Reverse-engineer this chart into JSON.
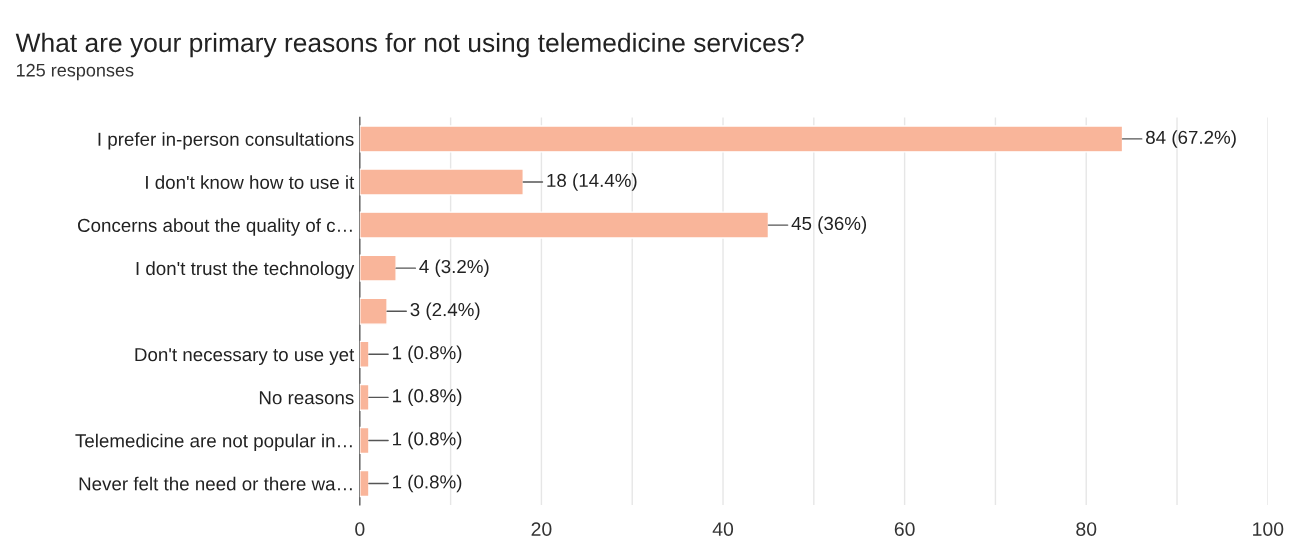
{
  "chart_data": {
    "type": "bar",
    "orientation": "horizontal",
    "title": "What are your primary reasons for not using telemedicine services?",
    "subtitle": "125 responses",
    "categories": [
      "I prefer in-person consultations",
      "I don't know how to use it",
      "Concerns about the quality of c…",
      "I don't trust the technology",
      null,
      "Don't necessary to use yet",
      "No reasons",
      "Telemedicine are not popular in…",
      "Never felt the need or there wa…"
    ],
    "values": [
      84,
      18,
      45,
      4,
      3,
      1,
      1,
      1,
      1
    ],
    "value_labels": [
      "84 (67.2%)",
      "18 (14.4%)",
      "45 (36%)",
      "4 (3.2%)",
      "3 (2.4%)",
      "1 (0.8%)",
      "1 (0.8%)",
      "1 (0.8%)",
      "1 (0.8%)"
    ],
    "color": "#f9b59a",
    "xlim": [
      0,
      100
    ],
    "xticks": [
      0,
      {
        "value": 10,
        "label": null
      },
      20,
      {
        "value": 30,
        "label": null
      },
      40,
      {
        "value": 50,
        "label": null
      },
      60,
      {
        "value": 70,
        "label": null
      },
      80,
      {
        "value": 90,
        "label": null
      },
      100
    ],
    "grid": "x"
  }
}
